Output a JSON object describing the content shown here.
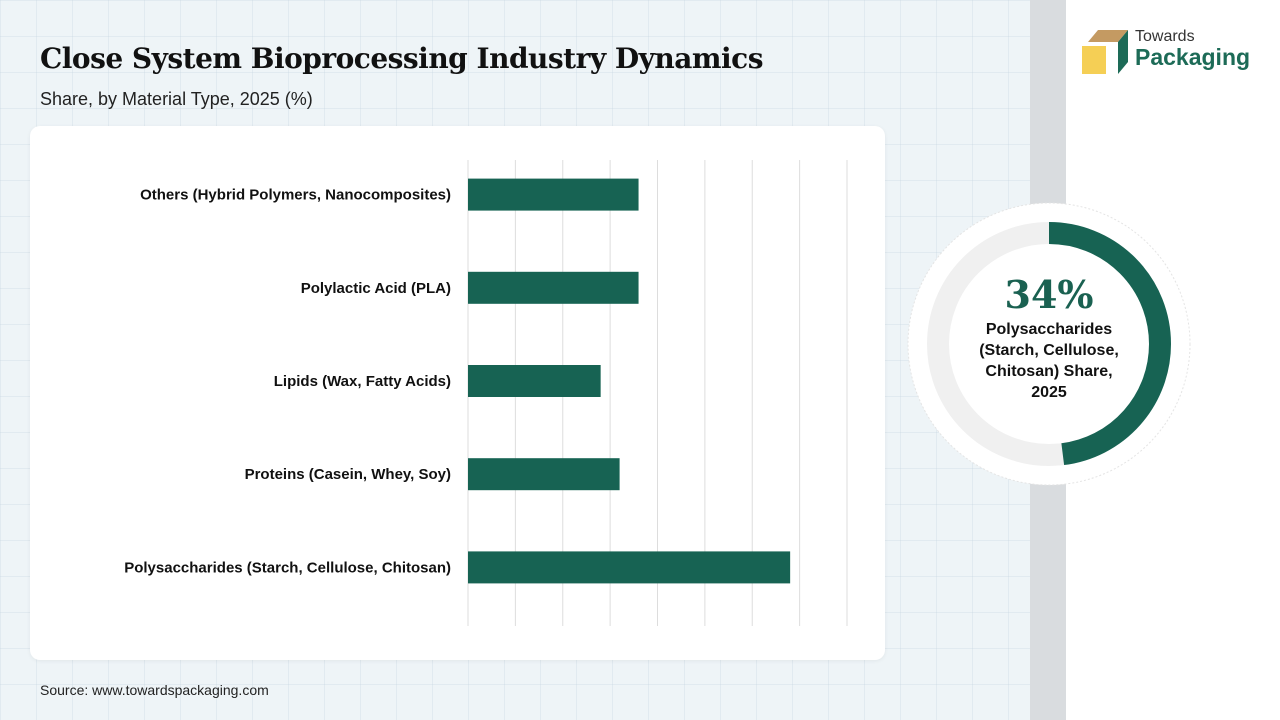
{
  "header": {
    "title": "Close System Bioprocessing Industry Dynamics",
    "subtitle": "Share, by Material Type, 2025 (%)"
  },
  "logo": {
    "line1": "Towards",
    "line2": "Packaging"
  },
  "source": "Source: www.towardspackaging.com",
  "colors": {
    "bar": "#176353",
    "donut_track": "#f0f0f0",
    "grid": "#dddddd"
  },
  "chart_data": {
    "type": "bar",
    "orientation": "horizontal",
    "title": "Close System Bioprocessing Industry Dynamics",
    "subtitle": "Share, by Material Type, 2025 (%)",
    "categories": [
      "Others (Hybrid Polymers, Nanocomposites)",
      "Polylactic Acid (PLA)",
      "Lipids (Wax, Fatty Acids)",
      "Proteins (Casein, Whey, Soy)",
      "Polysaccharides (Starch, Cellulose, Chitosan)"
    ],
    "values": [
      18,
      18,
      14,
      16,
      34
    ],
    "xlim": [
      0,
      40
    ],
    "grid_step": 5,
    "grid": true,
    "xlabel": "",
    "ylabel": ""
  },
  "highlight": {
    "value": "34%",
    "label": "Polysaccharides (Starch, Cellulose, Chitosan) Share, 2025",
    "donut_fill": 0.48
  }
}
